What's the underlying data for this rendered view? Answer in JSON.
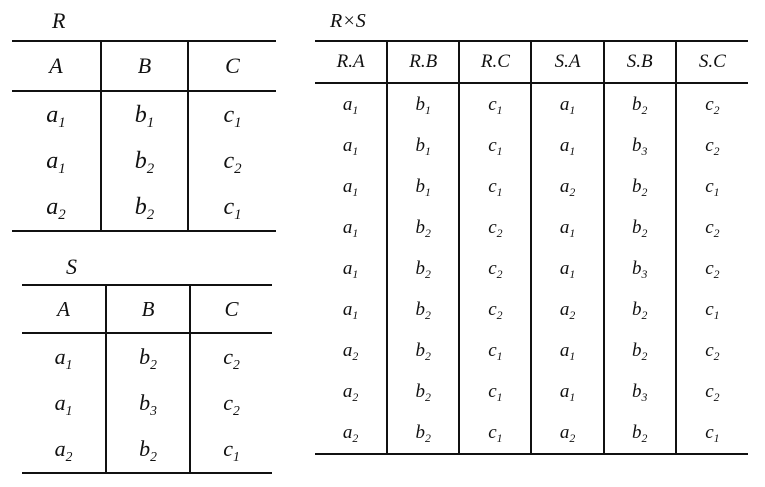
{
  "r": {
    "caption": "R",
    "columns": [
      "A",
      "B",
      "C"
    ],
    "rows": [
      [
        {
          "v": "a",
          "s": "1"
        },
        {
          "v": "b",
          "s": "1"
        },
        {
          "v": "c",
          "s": "1"
        }
      ],
      [
        {
          "v": "a",
          "s": "1"
        },
        {
          "v": "b",
          "s": "2"
        },
        {
          "v": "c",
          "s": "2"
        }
      ],
      [
        {
          "v": "a",
          "s": "2"
        },
        {
          "v": "b",
          "s": "2"
        },
        {
          "v": "c",
          "s": "1"
        }
      ]
    ]
  },
  "s": {
    "caption": "S",
    "columns": [
      "A",
      "B",
      "C"
    ],
    "rows": [
      [
        {
          "v": "a",
          "s": "1"
        },
        {
          "v": "b",
          "s": "2"
        },
        {
          "v": "c",
          "s": "2"
        }
      ],
      [
        {
          "v": "a",
          "s": "1"
        },
        {
          "v": "b",
          "s": "3"
        },
        {
          "v": "c",
          "s": "2"
        }
      ],
      [
        {
          "v": "a",
          "s": "2"
        },
        {
          "v": "b",
          "s": "2"
        },
        {
          "v": "c",
          "s": "1"
        }
      ]
    ]
  },
  "rs": {
    "caption": "R×S",
    "columns": [
      "R.A",
      "R.B",
      "R.C",
      "S.A",
      "S.B",
      "S.C"
    ],
    "rows": [
      [
        {
          "v": "a",
          "s": "1"
        },
        {
          "v": "b",
          "s": "1"
        },
        {
          "v": "c",
          "s": "1"
        },
        {
          "v": "a",
          "s": "1"
        },
        {
          "v": "b",
          "s": "2"
        },
        {
          "v": "c",
          "s": "2"
        }
      ],
      [
        {
          "v": "a",
          "s": "1"
        },
        {
          "v": "b",
          "s": "1"
        },
        {
          "v": "c",
          "s": "1"
        },
        {
          "v": "a",
          "s": "1"
        },
        {
          "v": "b",
          "s": "3"
        },
        {
          "v": "c",
          "s": "2"
        }
      ],
      [
        {
          "v": "a",
          "s": "1"
        },
        {
          "v": "b",
          "s": "1"
        },
        {
          "v": "c",
          "s": "1"
        },
        {
          "v": "a",
          "s": "2"
        },
        {
          "v": "b",
          "s": "2"
        },
        {
          "v": "c",
          "s": "1"
        }
      ],
      [
        {
          "v": "a",
          "s": "1"
        },
        {
          "v": "b",
          "s": "2"
        },
        {
          "v": "c",
          "s": "2"
        },
        {
          "v": "a",
          "s": "1"
        },
        {
          "v": "b",
          "s": "2"
        },
        {
          "v": "c",
          "s": "2"
        }
      ],
      [
        {
          "v": "a",
          "s": "1"
        },
        {
          "v": "b",
          "s": "2"
        },
        {
          "v": "c",
          "s": "2"
        },
        {
          "v": "a",
          "s": "1"
        },
        {
          "v": "b",
          "s": "3"
        },
        {
          "v": "c",
          "s": "2"
        }
      ],
      [
        {
          "v": "a",
          "s": "1"
        },
        {
          "v": "b",
          "s": "2"
        },
        {
          "v": "c",
          "s": "2"
        },
        {
          "v": "a",
          "s": "2"
        },
        {
          "v": "b",
          "s": "2"
        },
        {
          "v": "c",
          "s": "1"
        }
      ],
      [
        {
          "v": "a",
          "s": "2"
        },
        {
          "v": "b",
          "s": "2"
        },
        {
          "v": "c",
          "s": "1"
        },
        {
          "v": "a",
          "s": "1"
        },
        {
          "v": "b",
          "s": "2"
        },
        {
          "v": "c",
          "s": "2"
        }
      ],
      [
        {
          "v": "a",
          "s": "2"
        },
        {
          "v": "b",
          "s": "2"
        },
        {
          "v": "c",
          "s": "1"
        },
        {
          "v": "a",
          "s": "1"
        },
        {
          "v": "b",
          "s": "3"
        },
        {
          "v": "c",
          "s": "2"
        }
      ],
      [
        {
          "v": "a",
          "s": "2"
        },
        {
          "v": "b",
          "s": "2"
        },
        {
          "v": "c",
          "s": "1"
        },
        {
          "v": "a",
          "s": "2"
        },
        {
          "v": "b",
          "s": "2"
        },
        {
          "v": "c",
          "s": "1"
        }
      ]
    ]
  }
}
